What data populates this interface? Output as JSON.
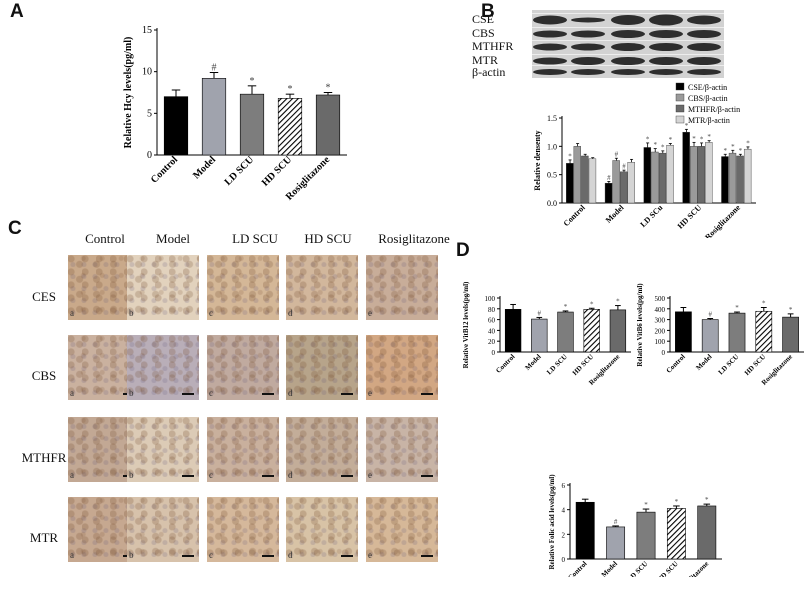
{
  "panels": {
    "a": "A",
    "b": "B",
    "c": "C",
    "d": "D"
  },
  "blot": {
    "labels": [
      "CSE",
      "CBS",
      "MTHFR",
      "MTR",
      "β-actin"
    ]
  },
  "histology": {
    "columns": [
      "Control",
      "Model",
      "LD SCU",
      "HD SCU",
      "Rosiglitazone"
    ],
    "rows": [
      "CES",
      "CBS",
      "MTHFR",
      "MTR"
    ],
    "tile_letters": [
      "a",
      "b",
      "c",
      "d",
      "e"
    ]
  },
  "chart_data": [
    {
      "id": "A",
      "type": "bar",
      "ylabel": "Relative Hcy levels(pg/ml)",
      "categories": [
        "Control",
        "Model",
        "LD SCU",
        "HD SCU",
        "Rosiglitazone"
      ],
      "values": [
        7.0,
        9.2,
        7.3,
        6.8,
        7.2
      ],
      "errors": [
        0.8,
        0.7,
        1.0,
        0.5,
        0.3
      ],
      "marks": [
        "",
        "#",
        "*",
        "*",
        "*"
      ],
      "ylim": [
        0,
        15
      ],
      "yticks": [
        0,
        5,
        10,
        15
      ]
    },
    {
      "id": "B",
      "type": "bar",
      "ylabel": "Relative densenty",
      "categories": [
        "Control",
        "Model",
        "LD SCu",
        "HD SCU",
        "Rosiglitazone"
      ],
      "legend_position": "top-right",
      "series": [
        {
          "name": "CSE/β-actin",
          "color": "#000000",
          "values": [
            0.7,
            0.35,
            0.98,
            1.25,
            0.82
          ],
          "errors": [
            0.06,
            0.03,
            0.08,
            0.05,
            0.04
          ],
          "marks": [
            "*",
            "#",
            "*",
            "*",
            "*"
          ]
        },
        {
          "name": "CBS/β-actin",
          "color": "#9a9a9a",
          "values": [
            1.0,
            0.75,
            0.9,
            1.0,
            0.88
          ],
          "errors": [
            0.05,
            0.04,
            0.06,
            0.07,
            0.05
          ],
          "marks": [
            "",
            "#",
            "*",
            "*",
            "*"
          ]
        },
        {
          "name": "MTHFR/β-actin",
          "color": "#6a6a6a",
          "values": [
            0.83,
            0.55,
            0.88,
            1.0,
            0.83
          ],
          "errors": [
            0.03,
            0.03,
            0.04,
            0.06,
            0.03
          ],
          "marks": [
            "",
            "#",
            "*",
            "*",
            "*"
          ]
        },
        {
          "name": "MTR/β-actin",
          "color": "#d4d4d4",
          "values": [
            0.78,
            0.72,
            1.02,
            1.07,
            0.95
          ],
          "errors": [
            0.02,
            0.05,
            0.03,
            0.03,
            0.04
          ],
          "marks": [
            "",
            "",
            "*",
            "*",
            "*"
          ]
        }
      ],
      "ylim": [
        0,
        1.5
      ],
      "yticks": [
        0.0,
        0.5,
        1.0,
        1.5
      ]
    },
    {
      "id": "D1",
      "type": "bar",
      "ylabel": "Relative VitB12 levels(pg/ml)",
      "categories": [
        "Control",
        "Model",
        "LD SCU",
        "HD SCU",
        "Rosiglitazone"
      ],
      "values": [
        79,
        61,
        74,
        79,
        78
      ],
      "errors": [
        9,
        3,
        2,
        2,
        8
      ],
      "marks": [
        "",
        "#",
        "*",
        "*",
        "*"
      ],
      "ylim": [
        0,
        100
      ],
      "yticks": [
        0,
        20,
        40,
        60,
        80,
        100
      ]
    },
    {
      "id": "D2",
      "type": "bar",
      "ylabel": "Relative VitB6 levels(pg/ml)",
      "categories": [
        "Control",
        "Model",
        "LD SCU",
        "HD SCU",
        "Rosiglitazone"
      ],
      "values": [
        372,
        300,
        360,
        377,
        323
      ],
      "errors": [
        40,
        10,
        10,
        35,
        30
      ],
      "marks": [
        "",
        "#",
        "*",
        "*",
        "*"
      ],
      "ylim": [
        0,
        500
      ],
      "yticks": [
        0,
        100,
        200,
        300,
        400,
        500
      ]
    },
    {
      "id": "D3",
      "type": "bar",
      "ylabel": "Relative Folic acid levels(pg/ml)",
      "categories": [
        "Control",
        "Model",
        "LD SCU",
        "HD SCU",
        "Rosiglitazone"
      ],
      "values": [
        4.6,
        2.6,
        3.8,
        4.1,
        4.3
      ],
      "errors": [
        0.25,
        0.08,
        0.25,
        0.2,
        0.15
      ],
      "marks": [
        "",
        "#",
        "*",
        "*",
        "*"
      ],
      "ylim": [
        0,
        6
      ],
      "yticks": [
        0,
        2,
        4,
        6
      ]
    }
  ]
}
